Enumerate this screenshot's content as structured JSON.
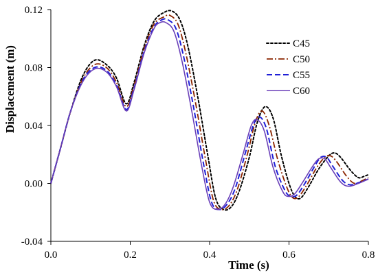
{
  "chart_data": {
    "type": "line",
    "title": "",
    "xlabel": "Time (s)",
    "ylabel": "Displacement  (m)",
    "xlim": [
      0.0,
      0.8
    ],
    "ylim": [
      -0.04,
      0.12
    ],
    "xticks": [
      0.0,
      0.2,
      0.4,
      0.6,
      0.8
    ],
    "xtick_labels": [
      "0.0",
      "0.2",
      "0.4",
      "0.6",
      "0.8"
    ],
    "yticks": [
      -0.04,
      0.0,
      0.04,
      0.08,
      0.12
    ],
    "ytick_labels": [
      "-0.04",
      "0.00",
      "0.04",
      "0.08",
      "0.12"
    ],
    "grid": false,
    "legend_position": "top-right",
    "series": [
      {
        "name": "C45",
        "color": "#000000",
        "dash": "dotted",
        "points": [
          [
            0.0,
            0.0
          ],
          [
            0.025,
            0.025
          ],
          [
            0.05,
            0.05
          ],
          [
            0.08,
            0.074
          ],
          [
            0.11,
            0.085
          ],
          [
            0.14,
            0.082
          ],
          [
            0.165,
            0.073
          ],
          [
            0.19,
            0.055
          ],
          [
            0.21,
            0.07
          ],
          [
            0.235,
            0.095
          ],
          [
            0.26,
            0.112
          ],
          [
            0.285,
            0.118
          ],
          [
            0.305,
            0.119
          ],
          [
            0.325,
            0.113
          ],
          [
            0.345,
            0.095
          ],
          [
            0.37,
            0.06
          ],
          [
            0.395,
            0.02
          ],
          [
            0.415,
            -0.01
          ],
          [
            0.435,
            -0.018
          ],
          [
            0.455,
            -0.016
          ],
          [
            0.475,
            -0.005
          ],
          [
            0.5,
            0.018
          ],
          [
            0.52,
            0.042
          ],
          [
            0.54,
            0.053
          ],
          [
            0.56,
            0.045
          ],
          [
            0.58,
            0.02
          ],
          [
            0.6,
            0.0
          ],
          [
            0.615,
            -0.009
          ],
          [
            0.63,
            -0.01
          ],
          [
            0.65,
            -0.002
          ],
          [
            0.675,
            0.01
          ],
          [
            0.7,
            0.019
          ],
          [
            0.715,
            0.021
          ],
          [
            0.73,
            0.018
          ],
          [
            0.755,
            0.009
          ],
          [
            0.775,
            0.004
          ],
          [
            0.79,
            0.005
          ],
          [
            0.8,
            0.006
          ]
        ]
      },
      {
        "name": "C50",
        "color": "#8b2500",
        "dash": "dashdot",
        "points": [
          [
            0.0,
            0.0
          ],
          [
            0.025,
            0.025
          ],
          [
            0.05,
            0.05
          ],
          [
            0.08,
            0.072
          ],
          [
            0.11,
            0.082
          ],
          [
            0.14,
            0.08
          ],
          [
            0.165,
            0.07
          ],
          [
            0.19,
            0.053
          ],
          [
            0.21,
            0.068
          ],
          [
            0.235,
            0.093
          ],
          [
            0.26,
            0.11
          ],
          [
            0.285,
            0.115
          ],
          [
            0.3,
            0.116
          ],
          [
            0.32,
            0.11
          ],
          [
            0.34,
            0.09
          ],
          [
            0.365,
            0.055
          ],
          [
            0.39,
            0.016
          ],
          [
            0.41,
            -0.012
          ],
          [
            0.43,
            -0.018
          ],
          [
            0.45,
            -0.015
          ],
          [
            0.47,
            -0.004
          ],
          [
            0.495,
            0.02
          ],
          [
            0.515,
            0.042
          ],
          [
            0.532,
            0.05
          ],
          [
            0.55,
            0.04
          ],
          [
            0.572,
            0.016
          ],
          [
            0.595,
            -0.003
          ],
          [
            0.61,
            -0.01
          ],
          [
            0.625,
            -0.009
          ],
          [
            0.645,
            -0.001
          ],
          [
            0.67,
            0.011
          ],
          [
            0.69,
            0.018
          ],
          [
            0.705,
            0.019
          ],
          [
            0.72,
            0.015
          ],
          [
            0.745,
            0.005
          ],
          [
            0.765,
            0.0
          ],
          [
            0.785,
            0.002
          ],
          [
            0.8,
            0.004
          ]
        ]
      },
      {
        "name": "C55",
        "color": "#1f1fd6",
        "dash": "dashed",
        "points": [
          [
            0.0,
            0.0
          ],
          [
            0.025,
            0.025
          ],
          [
            0.05,
            0.05
          ],
          [
            0.08,
            0.071
          ],
          [
            0.11,
            0.08
          ],
          [
            0.14,
            0.078
          ],
          [
            0.165,
            0.068
          ],
          [
            0.19,
            0.051
          ],
          [
            0.21,
            0.066
          ],
          [
            0.235,
            0.091
          ],
          [
            0.26,
            0.108
          ],
          [
            0.28,
            0.113
          ],
          [
            0.295,
            0.113
          ],
          [
            0.315,
            0.107
          ],
          [
            0.335,
            0.087
          ],
          [
            0.36,
            0.052
          ],
          [
            0.385,
            0.013
          ],
          [
            0.405,
            -0.013
          ],
          [
            0.425,
            -0.018
          ],
          [
            0.445,
            -0.014
          ],
          [
            0.465,
            -0.003
          ],
          [
            0.49,
            0.021
          ],
          [
            0.51,
            0.04
          ],
          [
            0.525,
            0.046
          ],
          [
            0.543,
            0.038
          ],
          [
            0.565,
            0.012
          ],
          [
            0.59,
            -0.005
          ],
          [
            0.605,
            -0.009
          ],
          [
            0.62,
            -0.008
          ],
          [
            0.64,
            0.0
          ],
          [
            0.665,
            0.012
          ],
          [
            0.68,
            0.018
          ],
          [
            0.695,
            0.018
          ],
          [
            0.71,
            0.012
          ],
          [
            0.735,
            0.002
          ],
          [
            0.755,
            -0.001
          ],
          [
            0.78,
            0.001
          ],
          [
            0.8,
            0.003
          ]
        ]
      },
      {
        "name": "C60",
        "color": "#6a3fb8",
        "dash": "solid",
        "points": [
          [
            0.0,
            0.0
          ],
          [
            0.025,
            0.025
          ],
          [
            0.05,
            0.05
          ],
          [
            0.08,
            0.07
          ],
          [
            0.11,
            0.079
          ],
          [
            0.14,
            0.077
          ],
          [
            0.165,
            0.067
          ],
          [
            0.19,
            0.05
          ],
          [
            0.21,
            0.065
          ],
          [
            0.235,
            0.09
          ],
          [
            0.26,
            0.107
          ],
          [
            0.275,
            0.111
          ],
          [
            0.29,
            0.111
          ],
          [
            0.31,
            0.105
          ],
          [
            0.33,
            0.085
          ],
          [
            0.355,
            0.05
          ],
          [
            0.38,
            0.012
          ],
          [
            0.4,
            -0.013
          ],
          [
            0.42,
            -0.018
          ],
          [
            0.44,
            -0.014
          ],
          [
            0.46,
            -0.002
          ],
          [
            0.485,
            0.021
          ],
          [
            0.505,
            0.04
          ],
          [
            0.52,
            0.044
          ],
          [
            0.538,
            0.036
          ],
          [
            0.56,
            0.011
          ],
          [
            0.585,
            -0.006
          ],
          [
            0.6,
            -0.009
          ],
          [
            0.615,
            -0.007
          ],
          [
            0.635,
            0.001
          ],
          [
            0.66,
            0.012
          ],
          [
            0.675,
            0.017
          ],
          [
            0.69,
            0.017
          ],
          [
            0.705,
            0.011
          ],
          [
            0.73,
            0.001
          ],
          [
            0.75,
            -0.002
          ],
          [
            0.775,
            0.0
          ],
          [
            0.8,
            0.003
          ]
        ]
      }
    ]
  }
}
